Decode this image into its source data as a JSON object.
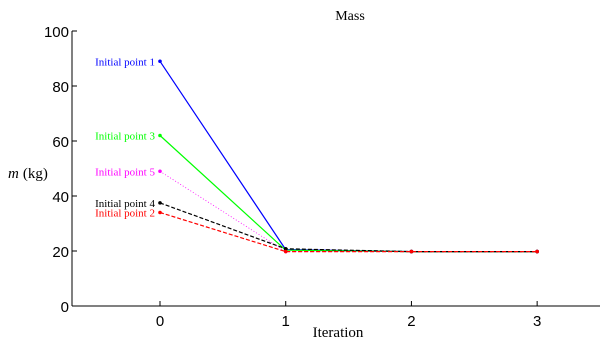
{
  "chart_data": {
    "type": "line",
    "title": "Mass",
    "xlabel": "Iteration",
    "ylabel_var": "m",
    "ylabel_unit": "(kg)",
    "xlim": [
      -0.7,
      3.5
    ],
    "ylim": [
      0,
      100
    ],
    "xticks": [
      0,
      1,
      2,
      3
    ],
    "yticks": [
      0,
      20,
      40,
      60,
      80,
      100
    ],
    "grid": false,
    "legend": "none",
    "x": [
      0,
      1,
      2,
      3
    ],
    "series": [
      {
        "name": "Initial point 1",
        "color": "#0000ff",
        "dash": "solid",
        "values": [
          89,
          20.5,
          19.8,
          19.8
        ]
      },
      {
        "name": "Initial point 3",
        "color": "#00ff00",
        "dash": "solid",
        "values": [
          62,
          20.3,
          19.8,
          19.8
        ]
      },
      {
        "name": "Initial point 5",
        "color": "#ff00ff",
        "dash": "dotted",
        "values": [
          49,
          19.8,
          19.8,
          19.8
        ]
      },
      {
        "name": "Initial point 4",
        "color": "#000000",
        "dash": "dashed",
        "values": [
          37.5,
          20.8,
          19.8,
          19.8
        ]
      },
      {
        "name": "Initial point 2",
        "color": "#ff0000",
        "dash": "dashed",
        "values": [
          34,
          19.8,
          19.8,
          19.8
        ]
      }
    ]
  }
}
